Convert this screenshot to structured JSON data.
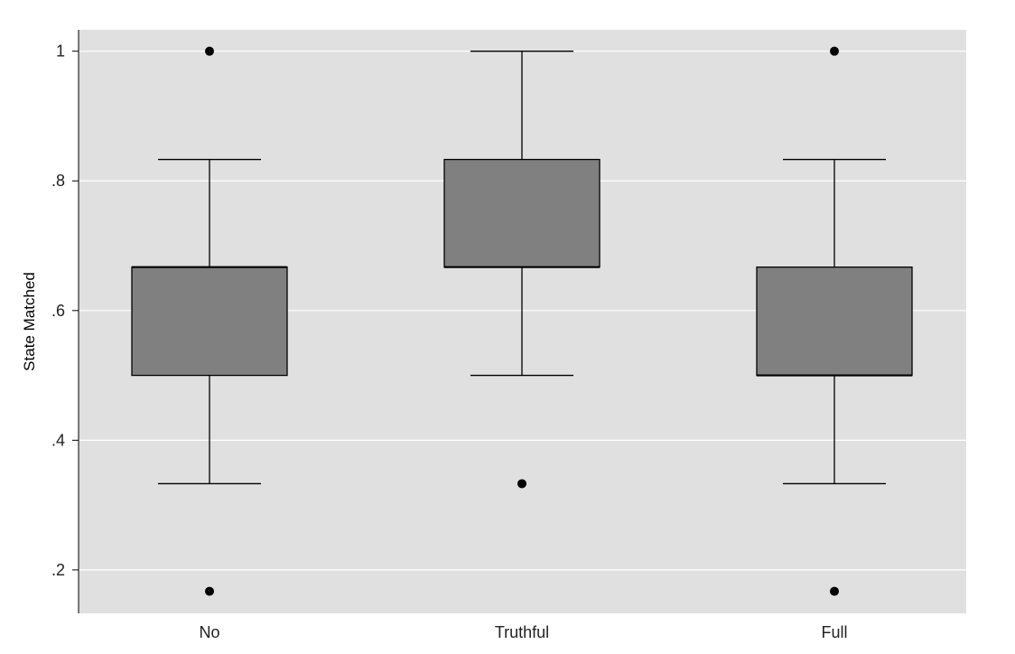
{
  "chart_data": {
    "type": "boxplot",
    "title": "",
    "xlabel": "",
    "ylabel": "State Matched",
    "ylim": [
      0.133,
      1.033
    ],
    "yticks": [
      {
        "value": 0.2,
        "label": ".2"
      },
      {
        "value": 0.4,
        "label": ".4"
      },
      {
        "value": 0.6,
        "label": ".6"
      },
      {
        "value": 0.8,
        "label": ".8"
      },
      {
        "value": 1.0,
        "label": "1"
      }
    ],
    "grid": true,
    "colors": {
      "plot_background": "#e0e0e0",
      "box_fill": "#808080",
      "gridline": "#ffffff",
      "stroke": "#000000"
    },
    "categories": [
      "No",
      "Truthful",
      "Full"
    ],
    "boxes": [
      {
        "category": "No",
        "whisker_low": 0.333,
        "q1": 0.5,
        "median": 0.667,
        "q3": 0.667,
        "whisker_high": 0.833,
        "outliers": [
          1.0,
          0.167
        ]
      },
      {
        "category": "Truthful",
        "whisker_low": 0.5,
        "q1": 0.667,
        "median": 0.667,
        "q3": 0.833,
        "whisker_high": 1.0,
        "outliers": [
          0.333
        ]
      },
      {
        "category": "Full",
        "whisker_low": 0.333,
        "q1": 0.5,
        "median": 0.5,
        "q3": 0.667,
        "whisker_high": 0.833,
        "outliers": [
          1.0,
          0.167
        ]
      }
    ]
  }
}
